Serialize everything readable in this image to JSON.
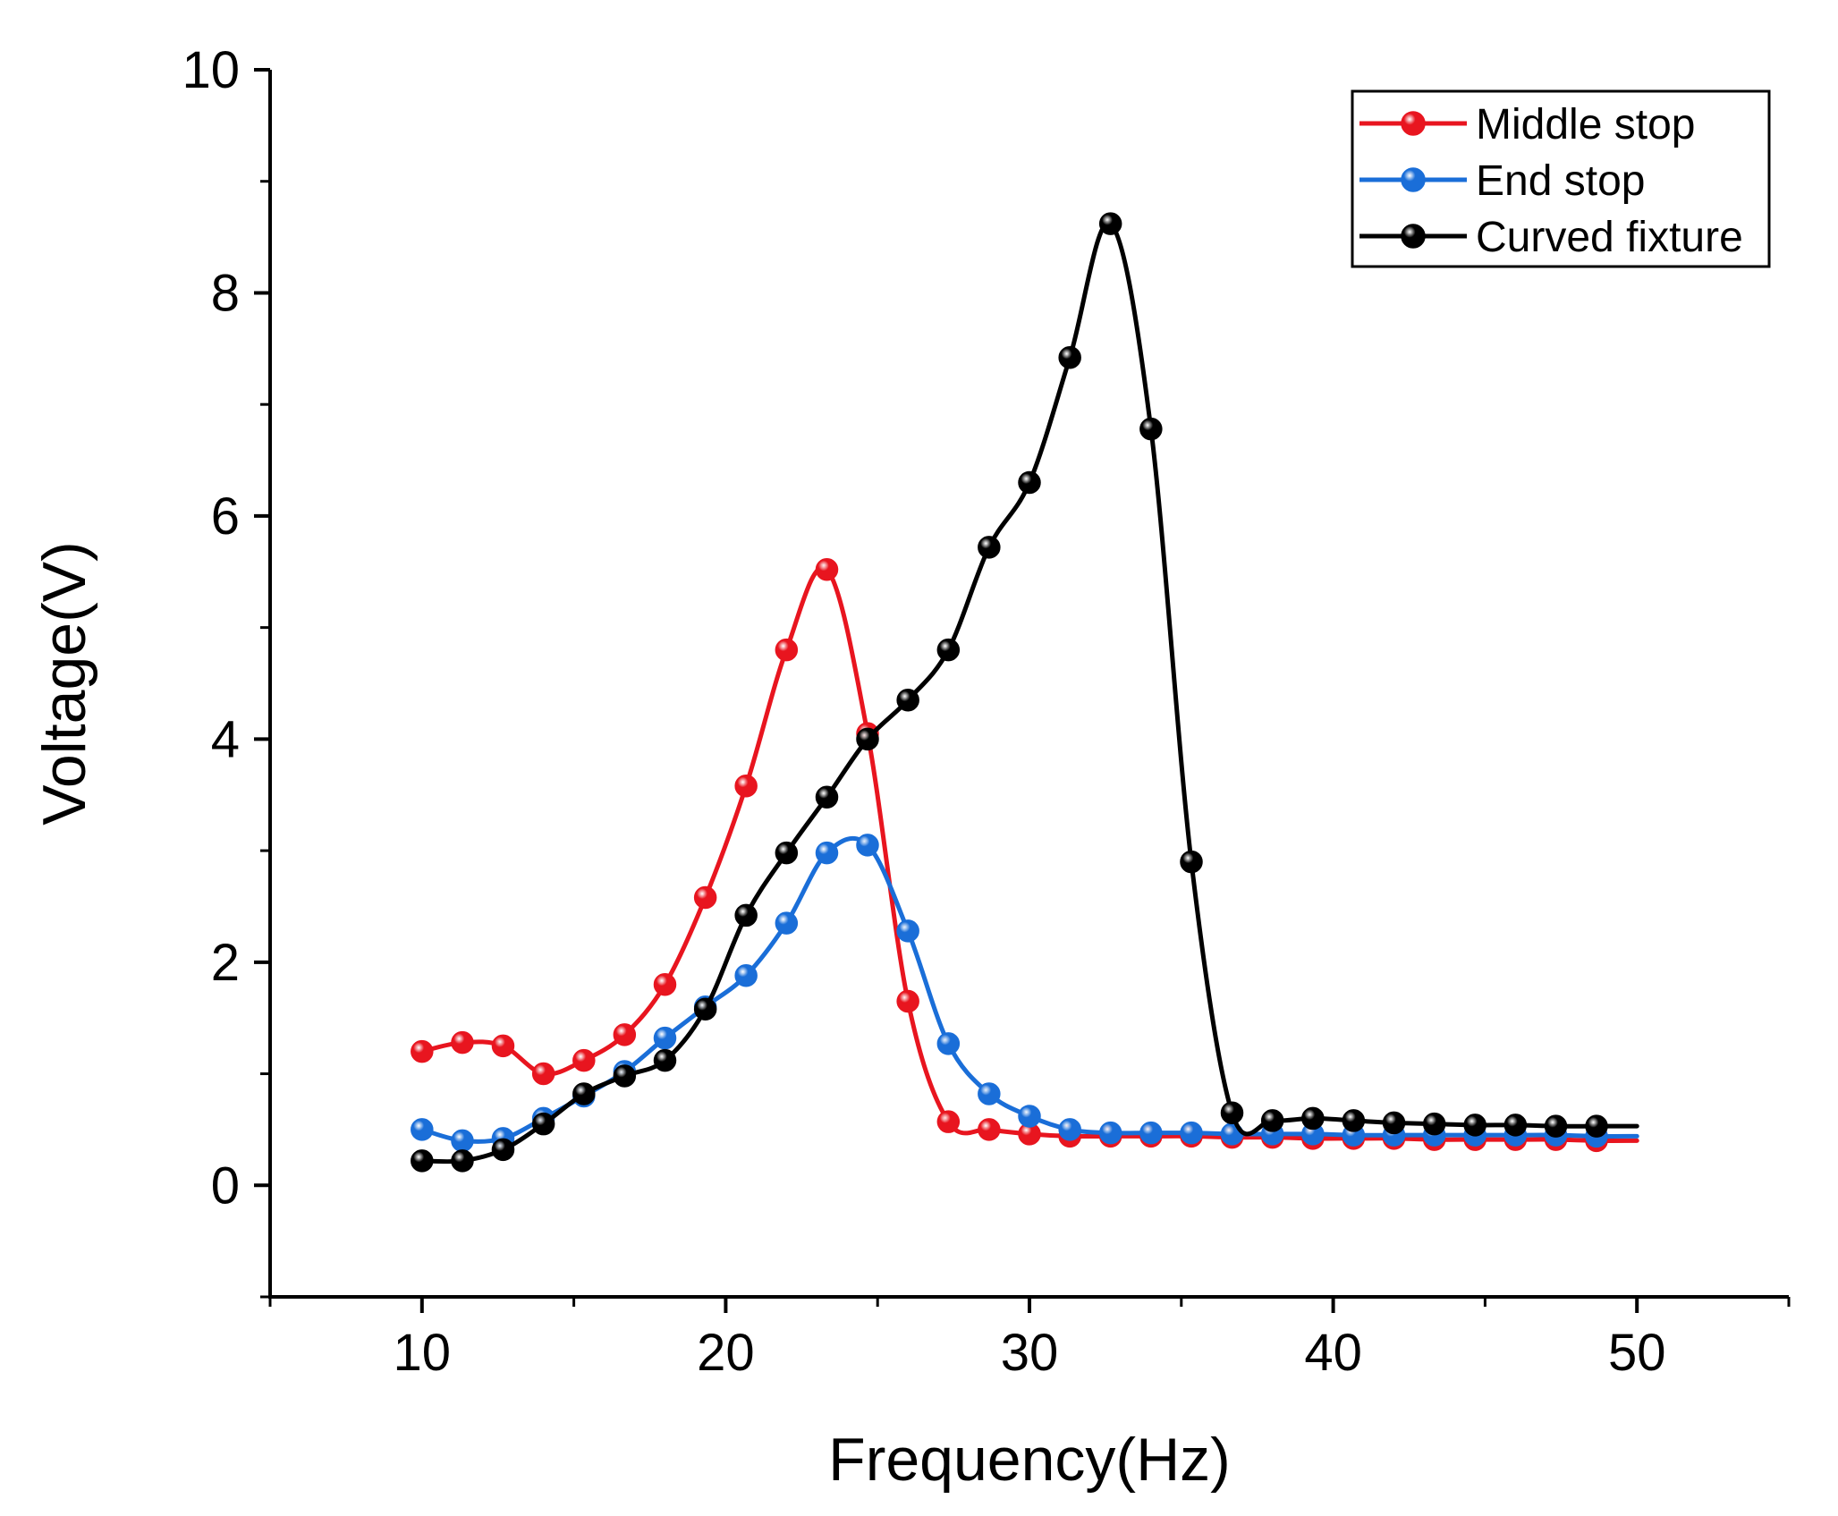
{
  "chart_data": {
    "type": "line",
    "title": "",
    "xlabel": "Frequency(Hz)",
    "ylabel": "Voltage(V)",
    "xlim": [
      5,
      55
    ],
    "ylim": [
      -1,
      10
    ],
    "xticks": [
      10,
      20,
      30,
      40,
      50
    ],
    "yticks": [
      0,
      2,
      4,
      6,
      8,
      10
    ],
    "xtick_labels": [
      "10",
      "20",
      "30",
      "40",
      "50"
    ],
    "ytick_labels": [
      "0",
      "2",
      "4",
      "6",
      "8",
      "10"
    ],
    "legend_position": "top-right",
    "grid": false,
    "series": [
      {
        "name": "Middle stop",
        "color": "#e8151f",
        "x": [
          10,
          11.33,
          12.67,
          14,
          15.33,
          16.67,
          18,
          19.33,
          20.67,
          22,
          23.33,
          24.67,
          26,
          27.33,
          28.67,
          30,
          31.33,
          32.67,
          34,
          35.33,
          36.67,
          38,
          39.33,
          40.67,
          42,
          43.33,
          44.67,
          46,
          47.33,
          48.67
        ],
        "y": [
          1.2,
          1.28,
          1.25,
          1.0,
          1.12,
          1.35,
          1.8,
          2.58,
          3.58,
          4.8,
          5.52,
          4.05,
          1.65,
          0.57,
          0.5,
          0.46,
          0.44,
          0.44,
          0.44,
          0.44,
          0.43,
          0.43,
          0.42,
          0.42,
          0.42,
          0.41,
          0.41,
          0.41,
          0.41,
          0.4
        ]
      },
      {
        "name": "End stop",
        "color": "#1a6ed8",
        "x": [
          10,
          11.33,
          12.67,
          14,
          15.33,
          16.67,
          18,
          19.33,
          20.67,
          22,
          23.33,
          24.67,
          26,
          27.33,
          28.67,
          30,
          31.33,
          32.67,
          34,
          35.33,
          36.67,
          38,
          39.33,
          40.67,
          42,
          43.33,
          44.67,
          46,
          47.33,
          48.67
        ],
        "y": [
          0.5,
          0.4,
          0.42,
          0.6,
          0.8,
          1.02,
          1.32,
          1.6,
          1.88,
          2.35,
          2.98,
          3.05,
          2.28,
          1.27,
          0.82,
          0.62,
          0.5,
          0.47,
          0.47,
          0.47,
          0.46,
          0.46,
          0.46,
          0.45,
          0.45,
          0.45,
          0.45,
          0.45,
          0.45,
          0.44
        ]
      },
      {
        "name": "Curved fixture",
        "color": "#000000",
        "x": [
          10,
          11.33,
          12.67,
          14,
          15.33,
          16.67,
          18,
          19.33,
          20.67,
          22,
          23.33,
          24.67,
          26,
          27.33,
          28.67,
          30,
          31.33,
          32.67,
          34,
          35.33,
          36.67,
          38,
          39.33,
          40.67,
          42,
          43.33,
          44.67,
          46,
          47.33,
          48.67
        ],
        "y": [
          0.22,
          0.22,
          0.32,
          0.55,
          0.82,
          0.98,
          1.12,
          1.58,
          2.42,
          2.98,
          3.48,
          4.0,
          4.35,
          4.8,
          5.72,
          6.3,
          7.42,
          8.62,
          6.78,
          2.9,
          0.65,
          0.58,
          0.6,
          0.58,
          0.56,
          0.55,
          0.54,
          0.54,
          0.53,
          0.53
        ]
      }
    ]
  }
}
